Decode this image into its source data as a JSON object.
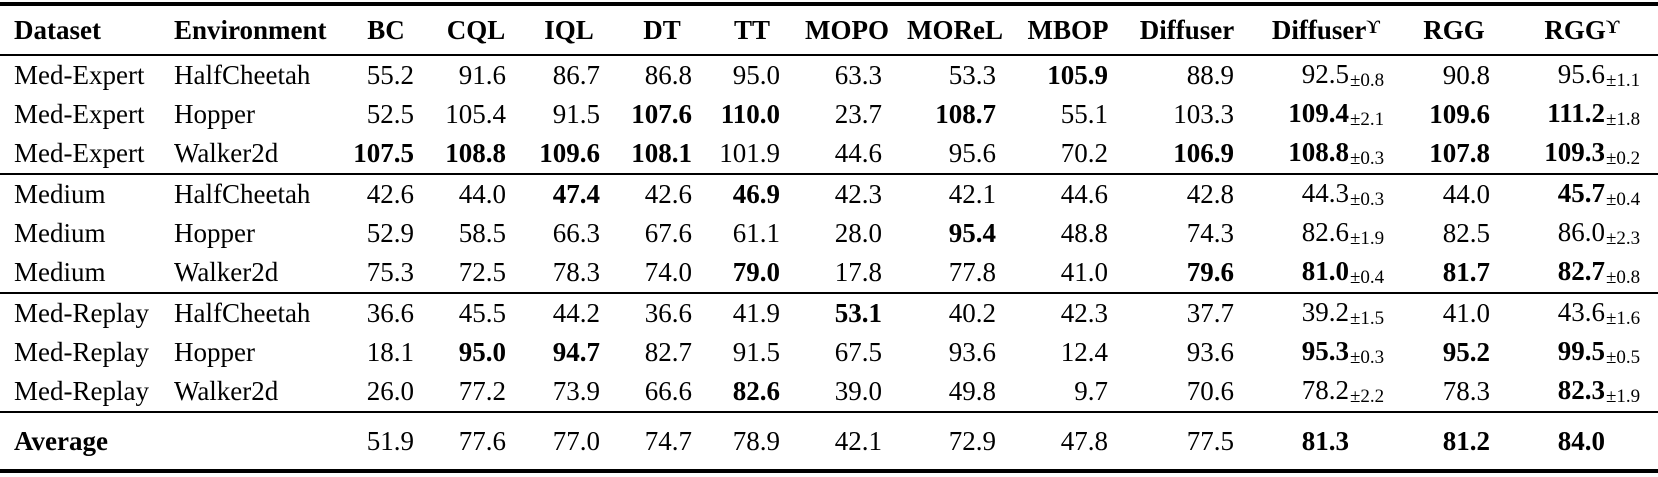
{
  "table": {
    "superscript_symbol": "ϒ",
    "text_color": "#000000",
    "background_color": "#ffffff",
    "columns": [
      {
        "key": "dataset",
        "label": "Dataset",
        "align": "left"
      },
      {
        "key": "environment",
        "label": "Environment",
        "align": "left"
      },
      {
        "key": "bc",
        "label": "BC"
      },
      {
        "key": "cql",
        "label": "CQL"
      },
      {
        "key": "iql",
        "label": "IQL"
      },
      {
        "key": "dt",
        "label": "DT"
      },
      {
        "key": "tt",
        "label": "TT"
      },
      {
        "key": "mopo",
        "label": "MOPO"
      },
      {
        "key": "morel",
        "label": "MOReL"
      },
      {
        "key": "mbop",
        "label": "MBOP"
      },
      {
        "key": "diffuser",
        "label": "Diffuser"
      },
      {
        "key": "diffuser_gamma",
        "label": "Diffuser",
        "sup": "ϒ",
        "pm_col": true
      },
      {
        "key": "rgg",
        "label": "RGG"
      },
      {
        "key": "rgg_gamma",
        "label": "RGG",
        "sup": "ϒ",
        "pm_col": true
      }
    ],
    "groups": [
      {
        "rows": [
          {
            "dataset": "Med-Expert",
            "environment": "HalfCheetah",
            "values": [
              {
                "v": "55.2"
              },
              {
                "v": "91.6"
              },
              {
                "v": "86.7"
              },
              {
                "v": "86.8"
              },
              {
                "v": "95.0"
              },
              {
                "v": "63.3"
              },
              {
                "v": "53.3"
              },
              {
                "v": "105.9",
                "bold": true
              },
              {
                "v": "88.9"
              },
              {
                "v": "92.5",
                "pm": "±0.8"
              },
              {
                "v": "90.8"
              },
              {
                "v": "95.6",
                "pm": "±1.1"
              }
            ]
          },
          {
            "dataset": "Med-Expert",
            "environment": "Hopper",
            "values": [
              {
                "v": "52.5"
              },
              {
                "v": "105.4"
              },
              {
                "v": "91.5"
              },
              {
                "v": "107.6",
                "bold": true
              },
              {
                "v": "110.0",
                "bold": true
              },
              {
                "v": "23.7"
              },
              {
                "v": "108.7",
                "bold": true
              },
              {
                "v": "55.1"
              },
              {
                "v": "103.3"
              },
              {
                "v": "109.4",
                "bold": true,
                "pm": "±2.1"
              },
              {
                "v": "109.6",
                "bold": true
              },
              {
                "v": "111.2",
                "bold": true,
                "pm": "±1.8"
              }
            ]
          },
          {
            "dataset": "Med-Expert",
            "environment": "Walker2d",
            "values": [
              {
                "v": "107.5",
                "bold": true
              },
              {
                "v": "108.8",
                "bold": true
              },
              {
                "v": "109.6",
                "bold": true
              },
              {
                "v": "108.1",
                "bold": true
              },
              {
                "v": "101.9"
              },
              {
                "v": "44.6"
              },
              {
                "v": "95.6"
              },
              {
                "v": "70.2"
              },
              {
                "v": "106.9",
                "bold": true
              },
              {
                "v": "108.8",
                "bold": true,
                "pm": "±0.3"
              },
              {
                "v": "107.8",
                "bold": true
              },
              {
                "v": "109.3",
                "bold": true,
                "pm": "±0.2"
              }
            ]
          }
        ]
      },
      {
        "rows": [
          {
            "dataset": "Medium",
            "environment": "HalfCheetah",
            "values": [
              {
                "v": "42.6"
              },
              {
                "v": "44.0"
              },
              {
                "v": "47.4",
                "bold": true
              },
              {
                "v": "42.6"
              },
              {
                "v": "46.9",
                "bold": true
              },
              {
                "v": "42.3"
              },
              {
                "v": "42.1"
              },
              {
                "v": "44.6"
              },
              {
                "v": "42.8"
              },
              {
                "v": "44.3",
                "pm": "±0.3"
              },
              {
                "v": "44.0"
              },
              {
                "v": "45.7",
                "bold": true,
                "pm": "±0.4"
              }
            ]
          },
          {
            "dataset": "Medium",
            "environment": "Hopper",
            "values": [
              {
                "v": "52.9"
              },
              {
                "v": "58.5"
              },
              {
                "v": "66.3"
              },
              {
                "v": "67.6"
              },
              {
                "v": "61.1"
              },
              {
                "v": "28.0"
              },
              {
                "v": "95.4",
                "bold": true
              },
              {
                "v": "48.8"
              },
              {
                "v": "74.3"
              },
              {
                "v": "82.6",
                "pm": "±1.9"
              },
              {
                "v": "82.5"
              },
              {
                "v": "86.0",
                "pm": "±2.3"
              }
            ]
          },
          {
            "dataset": "Medium",
            "environment": "Walker2d",
            "values": [
              {
                "v": "75.3"
              },
              {
                "v": "72.5"
              },
              {
                "v": "78.3"
              },
              {
                "v": "74.0"
              },
              {
                "v": "79.0",
                "bold": true
              },
              {
                "v": "17.8"
              },
              {
                "v": "77.8"
              },
              {
                "v": "41.0"
              },
              {
                "v": "79.6",
                "bold": true
              },
              {
                "v": "81.0",
                "bold": true,
                "pm": "±0.4"
              },
              {
                "v": "81.7",
                "bold": true
              },
              {
                "v": "82.7",
                "bold": true,
                "pm": "±0.8"
              }
            ]
          }
        ]
      },
      {
        "rows": [
          {
            "dataset": "Med-Replay",
            "environment": "HalfCheetah",
            "values": [
              {
                "v": "36.6"
              },
              {
                "v": "45.5"
              },
              {
                "v": "44.2"
              },
              {
                "v": "36.6"
              },
              {
                "v": "41.9"
              },
              {
                "v": "53.1",
                "bold": true
              },
              {
                "v": "40.2"
              },
              {
                "v": "42.3"
              },
              {
                "v": "37.7"
              },
              {
                "v": "39.2",
                "pm": "±1.5"
              },
              {
                "v": "41.0"
              },
              {
                "v": "43.6",
                "pm": "±1.6"
              }
            ]
          },
          {
            "dataset": "Med-Replay",
            "environment": "Hopper",
            "values": [
              {
                "v": "18.1"
              },
              {
                "v": "95.0",
                "bold": true
              },
              {
                "v": "94.7",
                "bold": true
              },
              {
                "v": "82.7"
              },
              {
                "v": "91.5"
              },
              {
                "v": "67.5"
              },
              {
                "v": "93.6"
              },
              {
                "v": "12.4"
              },
              {
                "v": "93.6"
              },
              {
                "v": "95.3",
                "bold": true,
                "pm": "±0.3"
              },
              {
                "v": "95.2",
                "bold": true
              },
              {
                "v": "99.5",
                "bold": true,
                "pm": "±0.5"
              }
            ]
          },
          {
            "dataset": "Med-Replay",
            "environment": "Walker2d",
            "values": [
              {
                "v": "26.0"
              },
              {
                "v": "77.2"
              },
              {
                "v": "73.9"
              },
              {
                "v": "66.6"
              },
              {
                "v": "82.6",
                "bold": true
              },
              {
                "v": "39.0"
              },
              {
                "v": "49.8"
              },
              {
                "v": "9.7"
              },
              {
                "v": "70.6"
              },
              {
                "v": "78.2",
                "pm": "±2.2"
              },
              {
                "v": "78.3"
              },
              {
                "v": "82.3",
                "bold": true,
                "pm": "±1.9"
              }
            ]
          }
        ]
      }
    ],
    "average": {
      "label": "Average",
      "values": [
        {
          "v": "51.9"
        },
        {
          "v": "77.6"
        },
        {
          "v": "77.0"
        },
        {
          "v": "74.7"
        },
        {
          "v": "78.9"
        },
        {
          "v": "42.1"
        },
        {
          "v": "72.9"
        },
        {
          "v": "47.8"
        },
        {
          "v": "77.5"
        },
        {
          "v": "81.3",
          "bold": true,
          "pm": ""
        },
        {
          "v": "81.2",
          "bold": true
        },
        {
          "v": "84.0",
          "bold": true,
          "pm": ""
        }
      ]
    }
  }
}
